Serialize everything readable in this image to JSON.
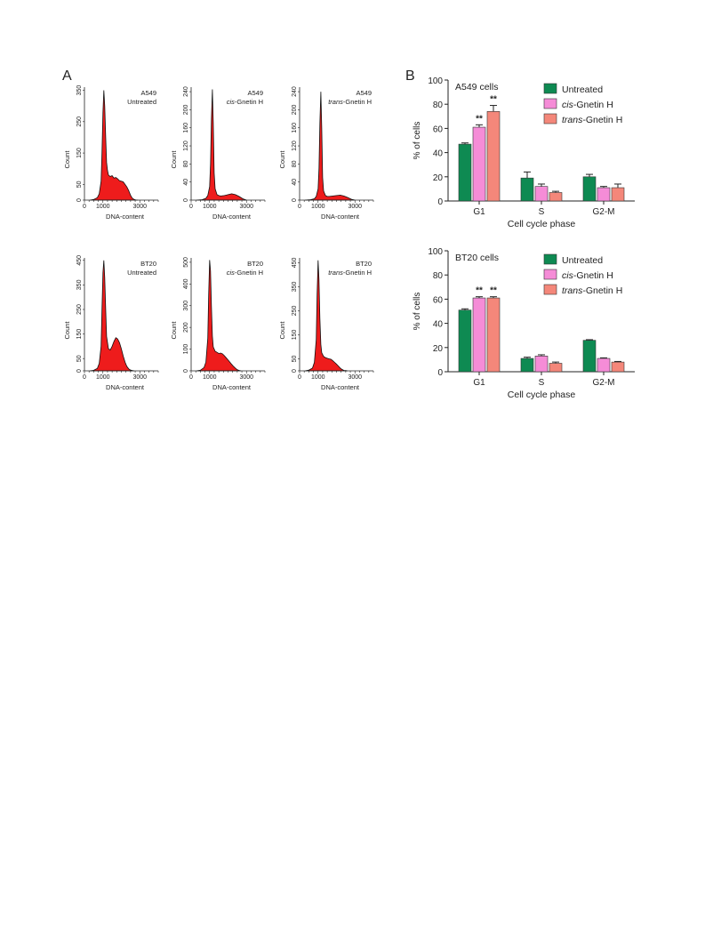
{
  "figure": {
    "panel_a_label": "A",
    "panel_b_label": "B"
  },
  "colors": {
    "histogram_fill": "#ee1c1c",
    "untreated": "#0e8a52",
    "cis": "#f58cd7",
    "trans": "#f4877a"
  },
  "chart_data": [
    {
      "type": "area",
      "panel": "A",
      "cell_line": "A549",
      "treatment": "Untreated",
      "xlabel": "DNA-content",
      "ylabel": "Count",
      "xticks": [
        0,
        1000,
        3000
      ],
      "xlim": [
        0,
        4000
      ],
      "ylim": [
        0,
        360
      ],
      "yticks": [
        0,
        50,
        150,
        250,
        350
      ],
      "x": [
        300,
        500,
        700,
        800,
        900,
        950,
        1000,
        1050,
        1100,
        1150,
        1200,
        1250,
        1300,
        1400,
        1500,
        1600,
        1700,
        1800,
        1900,
        2000,
        2100,
        2200,
        2300,
        2400,
        2500,
        2600,
        2700,
        2800,
        2900
      ],
      "y": [
        0,
        2,
        8,
        20,
        60,
        150,
        280,
        350,
        300,
        200,
        120,
        95,
        80,
        75,
        78,
        70,
        72,
        68,
        62,
        60,
        58,
        50,
        42,
        30,
        15,
        6,
        2,
        0,
        0
      ]
    },
    {
      "type": "area",
      "panel": "A",
      "cell_line": "A549",
      "treatment_prefix": "cis",
      "treatment_suffix": "-Gnetin H",
      "xlabel": "DNA-content",
      "ylabel": "Count",
      "xticks": [
        0,
        1000,
        3000
      ],
      "xlim": [
        0,
        4000
      ],
      "ylim": [
        0,
        250
      ],
      "yticks": [
        0,
        40,
        80,
        120,
        160,
        200,
        240
      ],
      "x": [
        300,
        600,
        800,
        900,
        1000,
        1050,
        1100,
        1150,
        1200,
        1250,
        1300,
        1400,
        1500,
        1600,
        1800,
        2000,
        2200,
        2400,
        2600,
        2800,
        3000
      ],
      "y": [
        0,
        1,
        4,
        10,
        30,
        80,
        180,
        245,
        170,
        60,
        25,
        12,
        10,
        9,
        10,
        12,
        14,
        12,
        8,
        3,
        0
      ]
    },
    {
      "type": "area",
      "panel": "A",
      "cell_line": "A549",
      "treatment_prefix": "trans",
      "treatment_suffix": "-Gnetin H",
      "xlabel": "DNA-content",
      "ylabel": "Count",
      "xticks": [
        0,
        1000,
        3000
      ],
      "xlim": [
        0,
        4000
      ],
      "ylim": [
        0,
        250
      ],
      "yticks": [
        0,
        40,
        80,
        120,
        160,
        200,
        240
      ],
      "x": [
        300,
        600,
        800,
        900,
        1000,
        1050,
        1100,
        1150,
        1200,
        1250,
        1300,
        1400,
        1500,
        1600,
        1800,
        2000,
        2200,
        2400,
        2600,
        2800,
        3000
      ],
      "y": [
        0,
        1,
        3,
        8,
        25,
        70,
        170,
        240,
        160,
        50,
        20,
        10,
        8,
        8,
        9,
        10,
        11,
        9,
        6,
        2,
        0
      ]
    },
    {
      "type": "area",
      "panel": "A",
      "cell_line": "BT20",
      "treatment": "Untreated",
      "xlabel": "DNA-content",
      "ylabel": "Count",
      "xticks": [
        0,
        1000,
        3000
      ],
      "xlim": [
        0,
        4000
      ],
      "ylim": [
        0,
        460
      ],
      "yticks": [
        0,
        50,
        150,
        250,
        350,
        450
      ],
      "x": [
        300,
        500,
        700,
        800,
        900,
        950,
        1000,
        1050,
        1100,
        1150,
        1200,
        1300,
        1400,
        1500,
        1600,
        1700,
        1800,
        1900,
        2000,
        2100,
        2200,
        2300,
        2400,
        2500,
        2600,
        2700
      ],
      "y": [
        0,
        2,
        10,
        30,
        100,
        250,
        400,
        450,
        380,
        250,
        140,
        90,
        85,
        100,
        120,
        135,
        130,
        115,
        90,
        60,
        35,
        18,
        8,
        3,
        1,
        0
      ]
    },
    {
      "type": "area",
      "panel": "A",
      "cell_line": "BT20",
      "treatment_prefix": "cis",
      "treatment_suffix": "-Gnetin H",
      "xlabel": "DNA-content",
      "ylabel": "Count",
      "xticks": [
        0,
        1000,
        3000
      ],
      "xlim": [
        0,
        4000
      ],
      "ylim": [
        0,
        520
      ],
      "yticks": [
        0,
        100,
        200,
        300,
        400,
        500
      ],
      "x": [
        300,
        500,
        700,
        800,
        900,
        950,
        1000,
        1050,
        1100,
        1150,
        1200,
        1300,
        1400,
        1500,
        1600,
        1700,
        1800,
        1900,
        2000,
        2100,
        2200,
        2300,
        2400,
        2500,
        2600,
        2700
      ],
      "y": [
        0,
        3,
        15,
        40,
        150,
        350,
        510,
        460,
        300,
        160,
        110,
        90,
        85,
        80,
        82,
        78,
        70,
        60,
        50,
        40,
        30,
        20,
        12,
        5,
        2,
        0
      ]
    },
    {
      "type": "area",
      "panel": "A",
      "cell_line": "BT20",
      "treatment_prefix": "trans",
      "treatment_suffix": "-Gnetin H",
      "xlabel": "DNA-content",
      "ylabel": "Count",
      "xticks": [
        0,
        1000,
        3000
      ],
      "xlim": [
        0,
        4000
      ],
      "ylim": [
        0,
        470
      ],
      "yticks": [
        0,
        50,
        150,
        250,
        350,
        450
      ],
      "x": [
        300,
        500,
        700,
        800,
        900,
        950,
        1000,
        1050,
        1100,
        1150,
        1200,
        1300,
        1400,
        1500,
        1600,
        1700,
        1800,
        1900,
        2000,
        2100,
        2200,
        2300,
        2400,
        2500,
        2600
      ],
      "y": [
        0,
        3,
        12,
        35,
        130,
        320,
        460,
        380,
        220,
        110,
        75,
        60,
        55,
        52,
        50,
        48,
        42,
        35,
        28,
        20,
        12,
        6,
        2,
        1,
        0
      ]
    },
    {
      "type": "bar",
      "panel": "B",
      "title": "A549 cells",
      "xlabel": "Cell cycle phase",
      "ylabel": "% of cells",
      "categories": [
        "G1",
        "S",
        "G2-M"
      ],
      "ylim": [
        0,
        100
      ],
      "yticks": [
        0,
        20,
        40,
        60,
        80,
        100
      ],
      "grid": false,
      "legend": "top-right",
      "series": [
        {
          "name": "Untreated",
          "values": [
            47,
            19,
            20
          ],
          "errors": [
            1,
            5,
            2
          ]
        },
        {
          "name_prefix": "cis",
          "name_suffix": "-Gnetin H",
          "values": [
            61,
            12,
            11
          ],
          "errors": [
            2,
            2,
            1
          ]
        },
        {
          "name_prefix": "trans",
          "name_suffix": "-Gnetin H",
          "values": [
            74,
            7,
            11
          ],
          "errors": [
            5,
            1,
            3
          ]
        }
      ],
      "annotations": [
        {
          "category": "G1",
          "series": 1,
          "text": "**"
        },
        {
          "category": "G1",
          "series": 2,
          "text": "**"
        }
      ]
    },
    {
      "type": "bar",
      "panel": "B",
      "title": "BT20 cells",
      "xlabel": "Cell cycle phase",
      "ylabel": "% of cells",
      "categories": [
        "G1",
        "S",
        "G2-M"
      ],
      "ylim": [
        0,
        100
      ],
      "yticks": [
        0,
        20,
        40,
        60,
        80,
        100
      ],
      "grid": false,
      "legend": "top-right",
      "series": [
        {
          "name": "Untreated",
          "values": [
            51,
            11,
            26
          ],
          "errors": [
            1,
            1,
            0.5
          ]
        },
        {
          "name_prefix": "cis",
          "name_suffix": "-Gnetin H",
          "values": [
            61,
            13,
            11
          ],
          "errors": [
            1,
            1,
            0.5
          ]
        },
        {
          "name_prefix": "trans",
          "name_suffix": "-Gnetin H",
          "values": [
            61,
            7,
            8
          ],
          "errors": [
            1,
            1,
            0.5
          ]
        }
      ],
      "annotations": [
        {
          "category": "G1",
          "series": 1,
          "text": "**"
        },
        {
          "category": "G1",
          "series": 2,
          "text": "**"
        }
      ]
    }
  ]
}
